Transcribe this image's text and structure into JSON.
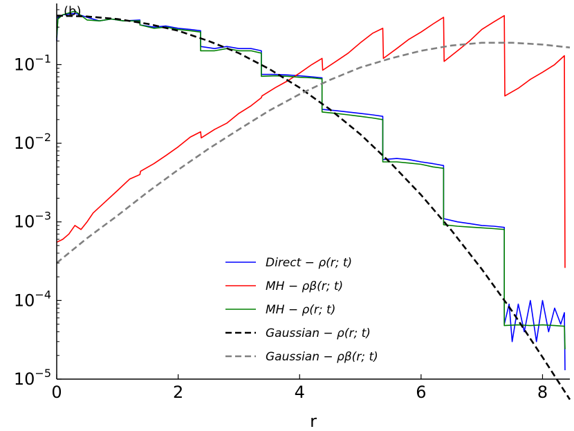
{
  "chart_data": {
    "type": "line",
    "panel_label": "(b)",
    "xlabel": "r",
    "ylabel": "",
    "xlim": [
      0,
      8.45
    ],
    "ylim": [
      1e-05,
      0.6
    ],
    "yscale": "log",
    "grid": false,
    "legend_position": "center-right",
    "x_ticks": [
      0,
      2,
      4,
      6,
      8
    ],
    "x_tick_labels": [
      "0",
      "2",
      "4",
      "6",
      "8"
    ],
    "y_ticks": [
      1e-05,
      0.0001,
      0.001,
      0.01,
      0.1
    ],
    "y_tick_labels": [
      {
        "base": "10",
        "exp": "−5"
      },
      {
        "base": "10",
        "exp": "−4"
      },
      {
        "base": "10",
        "exp": "−3"
      },
      {
        "base": "10",
        "exp": "−2"
      },
      {
        "base": "10",
        "exp": "−1"
      }
    ],
    "series": [
      {
        "name": "Direct − ρ(r; t)",
        "color": "#0000ff",
        "style": "solid",
        "points": [
          [
            0,
            0.2
          ],
          [
            0.02,
            0.4
          ],
          [
            0.1,
            0.43
          ],
          [
            0.3,
            0.45
          ],
          [
            0.5,
            0.4
          ],
          [
            0.7,
            0.36
          ],
          [
            0.9,
            0.38
          ],
          [
            1.1,
            0.36
          ],
          [
            1.37,
            0.37
          ],
          [
            1.37,
            0.32
          ],
          [
            1.6,
            0.3
          ],
          [
            1.8,
            0.31
          ],
          [
            2.0,
            0.29
          ],
          [
            2.2,
            0.28
          ],
          [
            2.37,
            0.27
          ],
          [
            2.37,
            0.17
          ],
          [
            2.6,
            0.16
          ],
          [
            2.8,
            0.17
          ],
          [
            3.0,
            0.16
          ],
          [
            3.2,
            0.16
          ],
          [
            3.37,
            0.15
          ],
          [
            3.37,
            0.075
          ],
          [
            3.6,
            0.075
          ],
          [
            3.8,
            0.074
          ],
          [
            4.0,
            0.072
          ],
          [
            4.2,
            0.07
          ],
          [
            4.37,
            0.068
          ],
          [
            4.37,
            0.027
          ],
          [
            4.6,
            0.026
          ],
          [
            4.8,
            0.025
          ],
          [
            5.0,
            0.024
          ],
          [
            5.2,
            0.023
          ],
          [
            5.37,
            0.022
          ],
          [
            5.37,
            0.0062
          ],
          [
            5.6,
            0.0064
          ],
          [
            5.8,
            0.0062
          ],
          [
            6.0,
            0.0058
          ],
          [
            6.2,
            0.0055
          ],
          [
            6.37,
            0.0052
          ],
          [
            6.37,
            0.0011
          ],
          [
            6.6,
            0.001
          ],
          [
            6.8,
            0.00095
          ],
          [
            7.0,
            0.0009
          ],
          [
            7.2,
            0.00088
          ],
          [
            7.37,
            0.00085
          ],
          [
            7.37,
            5e-05
          ],
          [
            7.45,
            9e-05
          ],
          [
            7.5,
            3e-05
          ],
          [
            7.6,
            9e-05
          ],
          [
            7.7,
            4e-05
          ],
          [
            7.8,
            0.0001
          ],
          [
            7.9,
            3e-05
          ],
          [
            8.0,
            0.0001
          ],
          [
            8.1,
            4e-05
          ],
          [
            8.2,
            8e-05
          ],
          [
            8.3,
            5e-05
          ],
          [
            8.36,
            7e-05
          ],
          [
            8.37,
            1.3e-05
          ]
        ]
      },
      {
        "name": "MH − ρβ(r; t)",
        "color": "#ff0000",
        "style": "solid",
        "points": [
          [
            0,
            0.00055
          ],
          [
            0.1,
            0.0006
          ],
          [
            0.2,
            0.0007
          ],
          [
            0.3,
            0.0009
          ],
          [
            0.4,
            0.0008
          ],
          [
            0.5,
            0.001
          ],
          [
            0.6,
            0.0013
          ],
          [
            0.8,
            0.0018
          ],
          [
            1.0,
            0.0025
          ],
          [
            1.2,
            0.0035
          ],
          [
            1.37,
            0.004
          ],
          [
            1.38,
            0.0044
          ],
          [
            1.6,
            0.0055
          ],
          [
            1.8,
            0.007
          ],
          [
            2.0,
            0.009
          ],
          [
            2.2,
            0.012
          ],
          [
            2.37,
            0.014
          ],
          [
            2.38,
            0.0117
          ],
          [
            2.6,
            0.015
          ],
          [
            2.8,
            0.018
          ],
          [
            3.0,
            0.024
          ],
          [
            3.2,
            0.03
          ],
          [
            3.37,
            0.038
          ],
          [
            3.38,
            0.04
          ],
          [
            3.6,
            0.051
          ],
          [
            3.8,
            0.062
          ],
          [
            4.0,
            0.078
          ],
          [
            4.2,
            0.1
          ],
          [
            4.37,
            0.12
          ],
          [
            4.38,
            0.085
          ],
          [
            4.6,
            0.11
          ],
          [
            4.8,
            0.14
          ],
          [
            5.0,
            0.19
          ],
          [
            5.2,
            0.25
          ],
          [
            5.37,
            0.29
          ],
          [
            5.38,
            0.12
          ],
          [
            5.6,
            0.16
          ],
          [
            5.8,
            0.21
          ],
          [
            6.0,
            0.26
          ],
          [
            6.2,
            0.33
          ],
          [
            6.37,
            0.4
          ],
          [
            6.38,
            0.11
          ],
          [
            6.6,
            0.15
          ],
          [
            6.8,
            0.2
          ],
          [
            7.0,
            0.28
          ],
          [
            7.2,
            0.35
          ],
          [
            7.37,
            0.42
          ],
          [
            7.38,
            0.04
          ],
          [
            7.6,
            0.05
          ],
          [
            7.8,
            0.065
          ],
          [
            8.0,
            0.08
          ],
          [
            8.2,
            0.1
          ],
          [
            8.36,
            0.13
          ],
          [
            8.37,
            0.00026
          ]
        ]
      },
      {
        "name": "MH − ρ(r; t)",
        "color": "#008000",
        "style": "solid",
        "points": [
          [
            0,
            0.22
          ],
          [
            0.02,
            0.38
          ],
          [
            0.1,
            0.43
          ],
          [
            0.3,
            0.48
          ],
          [
            0.5,
            0.37
          ],
          [
            0.7,
            0.36
          ],
          [
            0.9,
            0.38
          ],
          [
            1.1,
            0.36
          ],
          [
            1.37,
            0.36
          ],
          [
            1.37,
            0.32
          ],
          [
            1.6,
            0.29
          ],
          [
            1.8,
            0.3
          ],
          [
            2.0,
            0.28
          ],
          [
            2.2,
            0.27
          ],
          [
            2.37,
            0.26
          ],
          [
            2.37,
            0.15
          ],
          [
            2.6,
            0.15
          ],
          [
            2.8,
            0.16
          ],
          [
            3.0,
            0.15
          ],
          [
            3.2,
            0.15
          ],
          [
            3.37,
            0.14
          ],
          [
            3.37,
            0.071
          ],
          [
            3.6,
            0.072
          ],
          [
            3.8,
            0.071
          ],
          [
            4.0,
            0.069
          ],
          [
            4.2,
            0.068
          ],
          [
            4.37,
            0.066
          ],
          [
            4.37,
            0.025
          ],
          [
            4.6,
            0.024
          ],
          [
            4.8,
            0.023
          ],
          [
            5.0,
            0.022
          ],
          [
            5.2,
            0.021
          ],
          [
            5.37,
            0.02
          ],
          [
            5.37,
            0.0058
          ],
          [
            5.6,
            0.0058
          ],
          [
            5.8,
            0.0056
          ],
          [
            6.0,
            0.0054
          ],
          [
            6.2,
            0.005
          ],
          [
            6.37,
            0.0048
          ],
          [
            6.37,
            0.00092
          ],
          [
            6.6,
            0.00088
          ],
          [
            6.8,
            0.00086
          ],
          [
            7.0,
            0.00084
          ],
          [
            7.2,
            0.00082
          ],
          [
            7.37,
            0.0008
          ],
          [
            7.37,
            4.8e-05
          ],
          [
            7.6,
            4.9e-05
          ],
          [
            7.8,
            4.8e-05
          ],
          [
            8.0,
            4.9e-05
          ],
          [
            8.2,
            4.8e-05
          ],
          [
            8.36,
            4.7e-05
          ],
          [
            8.37,
            2.4e-05
          ]
        ]
      },
      {
        "name": "Gaussian − ρ(r; t)",
        "color": "#000000",
        "style": "dashed",
        "points": [
          [
            0,
            0.42
          ],
          [
            0.5,
            0.41
          ],
          [
            1.0,
            0.38
          ],
          [
            1.5,
            0.33
          ],
          [
            2.0,
            0.27
          ],
          [
            2.5,
            0.2
          ],
          [
            3.0,
            0.14
          ],
          [
            3.5,
            0.088
          ],
          [
            4.0,
            0.051
          ],
          [
            4.5,
            0.027
          ],
          [
            5.0,
            0.013
          ],
          [
            5.5,
            0.0056
          ],
          [
            6.0,
            0.0022
          ],
          [
            6.5,
            0.00078
          ],
          [
            7.0,
            0.00025
          ],
          [
            7.5,
            7.3e-05
          ],
          [
            8.0,
            1.9e-05
          ],
          [
            8.45,
            5.5e-06
          ]
        ]
      },
      {
        "name": "Gaussian − ρβ(r; t)",
        "color": "#808080",
        "style": "dashed",
        "points": [
          [
            0,
            0.0003
          ],
          [
            0.5,
            0.00062
          ],
          [
            1.0,
            0.0012
          ],
          [
            1.5,
            0.0024
          ],
          [
            2.0,
            0.0046
          ],
          [
            2.5,
            0.0085
          ],
          [
            3.0,
            0.015
          ],
          [
            3.5,
            0.026
          ],
          [
            4.0,
            0.042
          ],
          [
            4.5,
            0.064
          ],
          [
            5.0,
            0.092
          ],
          [
            5.5,
            0.12
          ],
          [
            6.0,
            0.15
          ],
          [
            6.5,
            0.175
          ],
          [
            7.0,
            0.19
          ],
          [
            7.5,
            0.19
          ],
          [
            8.0,
            0.18
          ],
          [
            8.45,
            0.165
          ]
        ]
      }
    ]
  }
}
